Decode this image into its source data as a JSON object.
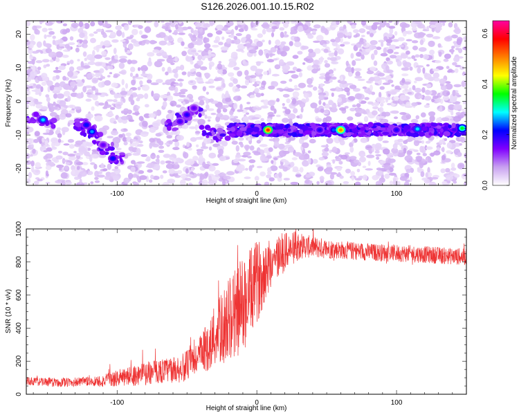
{
  "title": "S126.2026.001.10.15.R02",
  "chart_data": [
    {
      "type": "heatmap",
      "xlabel": "Height of straight line (km)",
      "ylabel": "Frequency (Hz)",
      "xlim": [
        -165,
        150
      ],
      "ylim": [
        -25,
        24
      ],
      "x_ticks": [
        -100,
        0,
        100
      ],
      "y_ticks": [
        -20,
        -10,
        0,
        10,
        20
      ],
      "colorbar": {
        "label": "Normalized spectral amplitude",
        "range": [
          0.0,
          0.65
        ],
        "ticks": [
          "0.0",
          "0.2",
          "0.4",
          "0.6"
        ],
        "colors": [
          "#ffffff",
          "#c8a0f0",
          "#8000ff",
          "#0000ff",
          "#00ffff",
          "#00ff00",
          "#ffff00",
          "#ff8000",
          "#ff0000",
          "#ff00a0"
        ]
      },
      "hotspots": [
        {
          "x": -153,
          "y": -5.5,
          "v": 0.28
        },
        {
          "x": -122,
          "y": -7,
          "v": 0.22
        },
        {
          "x": -118,
          "y": -9,
          "v": 0.26
        },
        {
          "x": -110,
          "y": -13,
          "v": 0.16
        },
        {
          "x": -103,
          "y": -17,
          "v": 0.22
        },
        {
          "x": -55,
          "y": -6,
          "v": 0.18
        },
        {
          "x": -50,
          "y": -4,
          "v": 0.2
        },
        {
          "x": -45,
          "y": -2,
          "v": 0.16
        },
        {
          "x": 8,
          "y": -8.5,
          "v": 0.55
        },
        {
          "x": 45,
          "y": -8.5,
          "v": 0.2
        },
        {
          "x": 55,
          "y": -8.5,
          "v": 0.24
        },
        {
          "x": 60,
          "y": -8.5,
          "v": 0.5
        },
        {
          "x": 100,
          "y": -8.5,
          "v": 0.2
        },
        {
          "x": 115,
          "y": -8.2,
          "v": 0.28
        },
        {
          "x": 147,
          "y": -8,
          "v": 0.35
        }
      ]
    },
    {
      "type": "line",
      "xlabel": "Height of straight line (km)",
      "ylabel": "SNR (10 * v/v)",
      "xlim": [
        -165,
        150
      ],
      "ylim": [
        0,
        1000
      ],
      "x_ticks": [
        -100,
        0,
        100
      ],
      "y_ticks": [
        0,
        200,
        400,
        600,
        800,
        1000
      ],
      "color": "#ee3333",
      "trend": {
        "x": [
          -165,
          -140,
          -110,
          -90,
          -70,
          -55,
          -45,
          -35,
          -25,
          -15,
          -8,
          0,
          10,
          20,
          30,
          50,
          80,
          110,
          130,
          150
        ],
        "y": [
          80,
          70,
          80,
          110,
          140,
          150,
          200,
          290,
          400,
          500,
          560,
          680,
          800,
          860,
          900,
          880,
          860,
          850,
          840,
          830
        ]
      },
      "noise": {
        "x": [
          -165,
          -120,
          -80,
          -55,
          -40,
          -25,
          -12,
          0,
          10,
          20,
          35,
          60,
          150
        ],
        "y": [
          25,
          30,
          70,
          80,
          120,
          220,
          300,
          250,
          160,
          120,
          70,
          55,
          50
        ]
      }
    }
  ]
}
